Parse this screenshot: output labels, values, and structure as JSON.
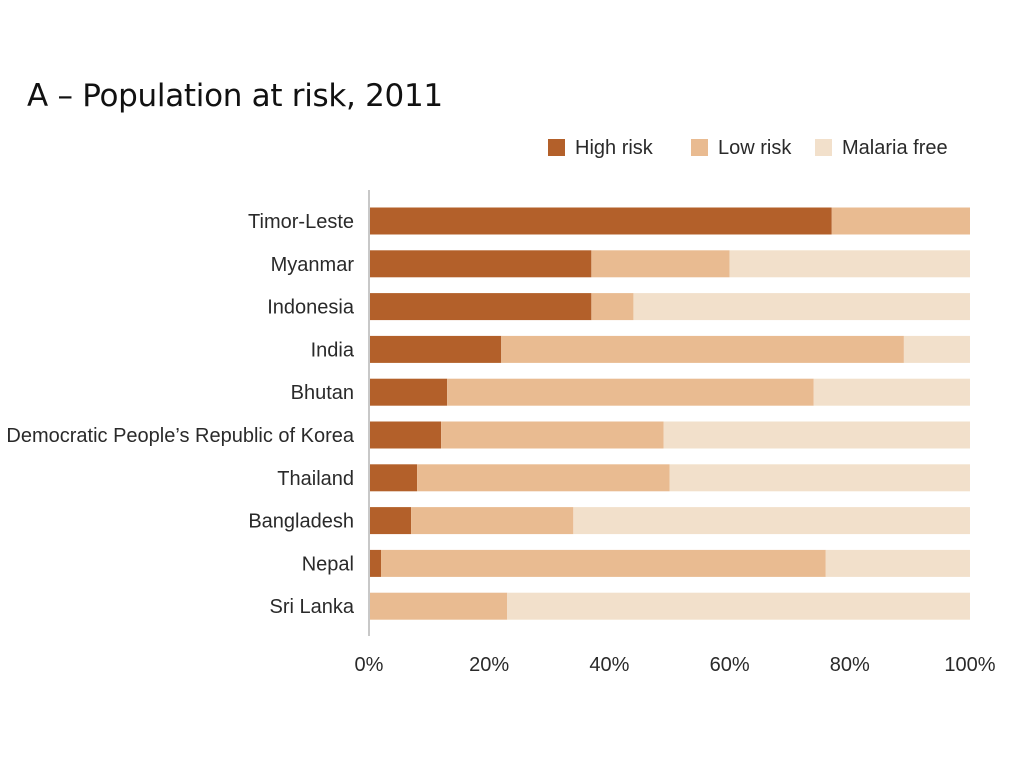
{
  "chart_data": {
    "type": "bar",
    "orientation": "horizontal",
    "stacked": true,
    "title": "A – Population at risk, 2011",
    "categories": [
      "Timor-Leste",
      "Myanmar",
      "Indonesia",
      "India",
      "Bhutan",
      "Democratic People’s Republic of Korea",
      "Thailand",
      "Bangladesh",
      "Nepal",
      "Sri Lanka"
    ],
    "series": [
      {
        "name": "High risk",
        "color": "#b3602a",
        "values": [
          77,
          37,
          37,
          22,
          13,
          12,
          8,
          7,
          2,
          0
        ]
      },
      {
        "name": "Low risk",
        "color": "#e9bb91",
        "values": [
          23,
          23,
          7,
          67,
          61,
          37,
          42,
          27,
          74,
          23
        ]
      },
      {
        "name": "Malaria free",
        "color": "#f2e0cb",
        "values": [
          0,
          40,
          56,
          11,
          26,
          51,
          50,
          66,
          24,
          77
        ]
      }
    ],
    "xlim": [
      0,
      100
    ],
    "x_ticks": [
      "0%",
      "20%",
      "40%",
      "60%",
      "80%",
      "100%"
    ],
    "xlabel": "",
    "ylabel": "",
    "grid": false,
    "legend_position": "top-right"
  }
}
